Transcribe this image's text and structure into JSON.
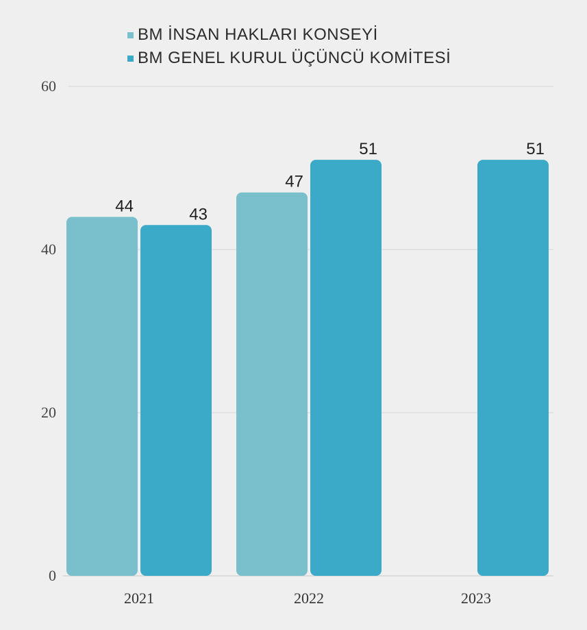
{
  "chart_data": {
    "type": "bar",
    "categories": [
      "2021",
      "2022",
      "2023"
    ],
    "series": [
      {
        "name": "BM İNSAN HAKLARI KONSEYİ",
        "color": "#79bfcc",
        "values": [
          44,
          47,
          null
        ]
      },
      {
        "name": "BM GENEL KURUL ÜÇÜNCÜ KOMİTESİ",
        "color": "#3aaac8",
        "values": [
          43,
          51,
          51
        ]
      }
    ],
    "yticks": [
      0,
      20,
      40,
      60
    ],
    "ylim": [
      0,
      60
    ],
    "grid": true,
    "legend_position": "top",
    "background": "#efefef"
  }
}
